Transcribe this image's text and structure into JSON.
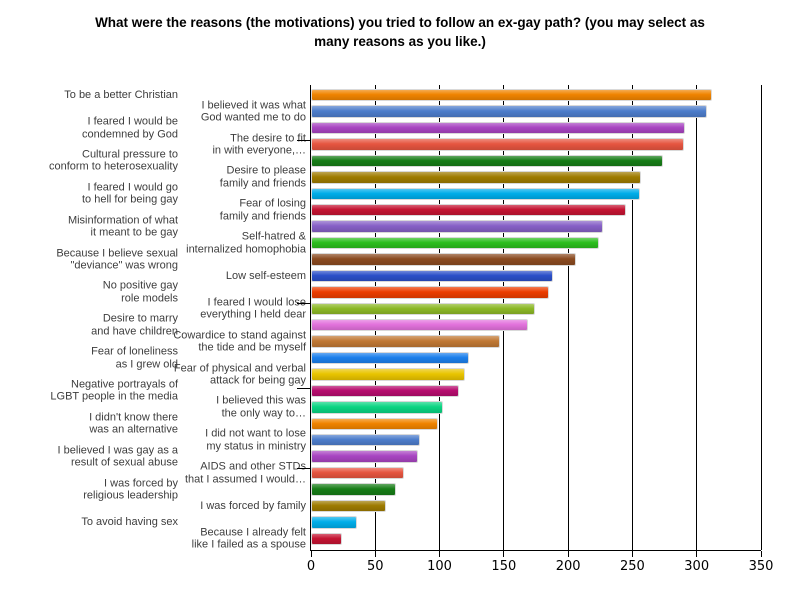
{
  "title": "What were the reasons (the motivations) you tried to follow an ex-gay path? (you may select as\nmany reasons as you like.)",
  "chart_data": {
    "type": "bar",
    "orientation": "horizontal",
    "title": "What were the reasons (the motivations) you tried to follow an ex-gay path? (you may select as\nmany reasons as you like.)",
    "xlabel": "",
    "ylabel": "",
    "xlim": [
      0,
      350
    ],
    "x_ticks": [
      0,
      50,
      100,
      150,
      200,
      250,
      300,
      350
    ],
    "grid": true,
    "legend": false,
    "rows": [
      {
        "label": "To be a better Christian",
        "value": 312,
        "color": "#F08400",
        "label_side": "left"
      },
      {
        "label": "I believed it was what\nGod wanted me to do",
        "value": 308,
        "color": "#4D7DCB",
        "label_side": "axis"
      },
      {
        "label": "I feared I would be\ncondemned by God",
        "value": 291,
        "color": "#A845C1",
        "label_side": "left"
      },
      {
        "label": "The desire to fit\nin with everyone,…",
        "value": 290,
        "color": "#E65540",
        "label_side": "axis",
        "leader": true,
        "leader_dy": -5
      },
      {
        "label": "Cultural pressure to\nconform to heterosexuality",
        "value": 274,
        "color": "#177D17",
        "label_side": "left"
      },
      {
        "label": "Desire to please\nfamily and friends",
        "value": 257,
        "color": "#9E7B00",
        "label_side": "axis"
      },
      {
        "label": "I feared I would go\nto hell for being gay",
        "value": 256,
        "color": "#00ADE9",
        "label_side": "left"
      },
      {
        "label": "Fear of losing\nfamily and friends",
        "value": 245,
        "color": "#C41432",
        "label_side": "axis"
      },
      {
        "label": "Misinformation of what\nit meant to be gay",
        "value": 227,
        "color": "#8660C6",
        "label_side": "left"
      },
      {
        "label": "Self-hatred &\ninternalized homophobia",
        "value": 224,
        "color": "#2CBE1E",
        "label_side": "axis"
      },
      {
        "label": "Because I believe sexual\n\"deviance\" was wrong",
        "value": 206,
        "color": "#8A4A20",
        "label_side": "left"
      },
      {
        "label": "Low self-esteem",
        "value": 188,
        "color": "#2B4FC8",
        "label_side": "axis"
      },
      {
        "label": "No positive gay\nrole models",
        "value": 185,
        "color": "#EC3D00",
        "label_side": "left"
      },
      {
        "label": "I feared I would lose\neverything I held dear",
        "value": 174,
        "color": "#8CB826",
        "label_side": "axis",
        "leader": true,
        "leader_dy": -6
      },
      {
        "label": "Desire to marry\nand have children",
        "value": 169,
        "color": "#E272DC",
        "label_side": "left"
      },
      {
        "label": "Cowardice to stand against\nthe tide and be myself",
        "value": 147,
        "color": "#C07834",
        "label_side": "axis"
      },
      {
        "label": "Fear of loneliness\nas I grew old",
        "value": 123,
        "color": "#1C80EC",
        "label_side": "left"
      },
      {
        "label": "Fear of physical and verbal\nattack for being gay",
        "value": 120,
        "color": "#E9C400",
        "label_side": "axis",
        "leader": true,
        "leader_dy": 13
      },
      {
        "label": "Negative portrayals of\nLGBT people in the media",
        "value": 115,
        "color": "#B60C6E",
        "label_side": "left"
      },
      {
        "label": "I believed this was\nthe only way to…",
        "value": 103,
        "color": "#0AD482",
        "label_side": "axis"
      },
      {
        "label": "I didn't know there\nwas an alternative",
        "value": 99,
        "color": "#F08400",
        "label_side": "left"
      },
      {
        "label": "I did not want to lose\nmy status in ministry",
        "value": 85,
        "color": "#4D7DCB",
        "label_side": "axis"
      },
      {
        "label": "I believed I was gay as a\nresult of sexual abuse",
        "value": 83,
        "color": "#A845C1",
        "label_side": "left"
      },
      {
        "label": "AIDS and other STDs\nthat I assumed I would…",
        "value": 72,
        "color": "#E65540",
        "label_side": "axis",
        "leader": true,
        "leader_dy": -5
      },
      {
        "label": "I was forced by\nreligious leadership",
        "value": 66,
        "color": "#177D17",
        "label_side": "left"
      },
      {
        "label": "I was forced by family",
        "value": 58,
        "color": "#9E7B00",
        "label_side": "axis"
      },
      {
        "label": "To avoid having sex",
        "value": 36,
        "color": "#00ADE9",
        "label_side": "left"
      },
      {
        "label": "Because I already felt\nlike I failed as a spouse",
        "value": 24,
        "color": "#C41432",
        "label_side": "axis"
      }
    ]
  }
}
